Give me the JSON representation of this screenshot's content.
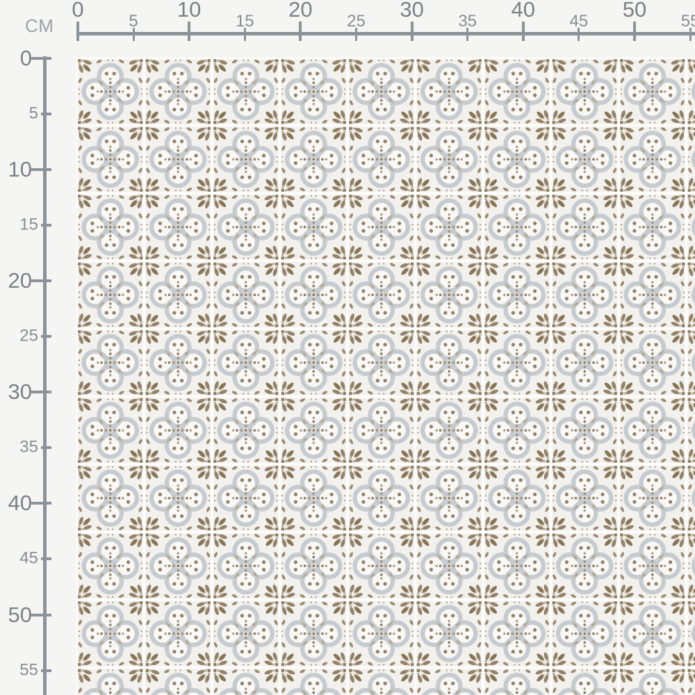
{
  "page": {
    "background_color": "#f5f5f3"
  },
  "ruler": {
    "unit_label": "CM",
    "bar_color": "#8b9298",
    "major_label_color": "#7b8187",
    "minor_label_color": "#878d93",
    "horizontal": {
      "ticks": [
        {
          "cm": 0,
          "label": "0",
          "major": true
        },
        {
          "cm": 5,
          "label": "5",
          "major": false
        },
        {
          "cm": 10,
          "label": "10",
          "major": true
        },
        {
          "cm": 15,
          "label": "15",
          "major": false
        },
        {
          "cm": 20,
          "label": "20",
          "major": true
        },
        {
          "cm": 25,
          "label": "25",
          "major": false
        },
        {
          "cm": 30,
          "label": "30",
          "major": true
        },
        {
          "cm": 35,
          "label": "35",
          "major": false
        },
        {
          "cm": 40,
          "label": "40",
          "major": true
        },
        {
          "cm": 45,
          "label": "45",
          "major": false
        },
        {
          "cm": 50,
          "label": "50",
          "major": true
        },
        {
          "cm": 55,
          "label": "55",
          "major": false
        }
      ]
    },
    "vertical": {
      "ticks": [
        {
          "cm": 0,
          "label": "0",
          "major": true
        },
        {
          "cm": 5,
          "label": "5",
          "major": false
        },
        {
          "cm": 10,
          "label": "10",
          "major": true
        },
        {
          "cm": 15,
          "label": "15",
          "major": false
        },
        {
          "cm": 20,
          "label": "20",
          "major": true
        },
        {
          "cm": 25,
          "label": "25",
          "major": false
        },
        {
          "cm": 30,
          "label": "30",
          "major": true
        },
        {
          "cm": 35,
          "label": "35",
          "major": false
        },
        {
          "cm": 40,
          "label": "40",
          "major": true
        },
        {
          "cm": 45,
          "label": "45",
          "major": false
        },
        {
          "cm": 50,
          "label": "50",
          "major": true
        },
        {
          "cm": 55,
          "label": "55",
          "major": false
        }
      ]
    }
  },
  "fabric_swatch": {
    "description": "Beige and grey cement-tile style quatrefoil repeating pattern fabric preview",
    "tile_repeat_cm": 6,
    "colors": {
      "grout_white": "#fdfdfc",
      "tile_background": "#f3f1ed",
      "quatrefoil_ring_grey": "#c6cbd0",
      "quatrefoil_fill": "#f9f8f5",
      "leaf_brown": "#94836a",
      "leaf_brown_dark": "#877655",
      "leaf_brown_light": "#b8ab93",
      "dot_brown": "#8d7c62"
    }
  }
}
